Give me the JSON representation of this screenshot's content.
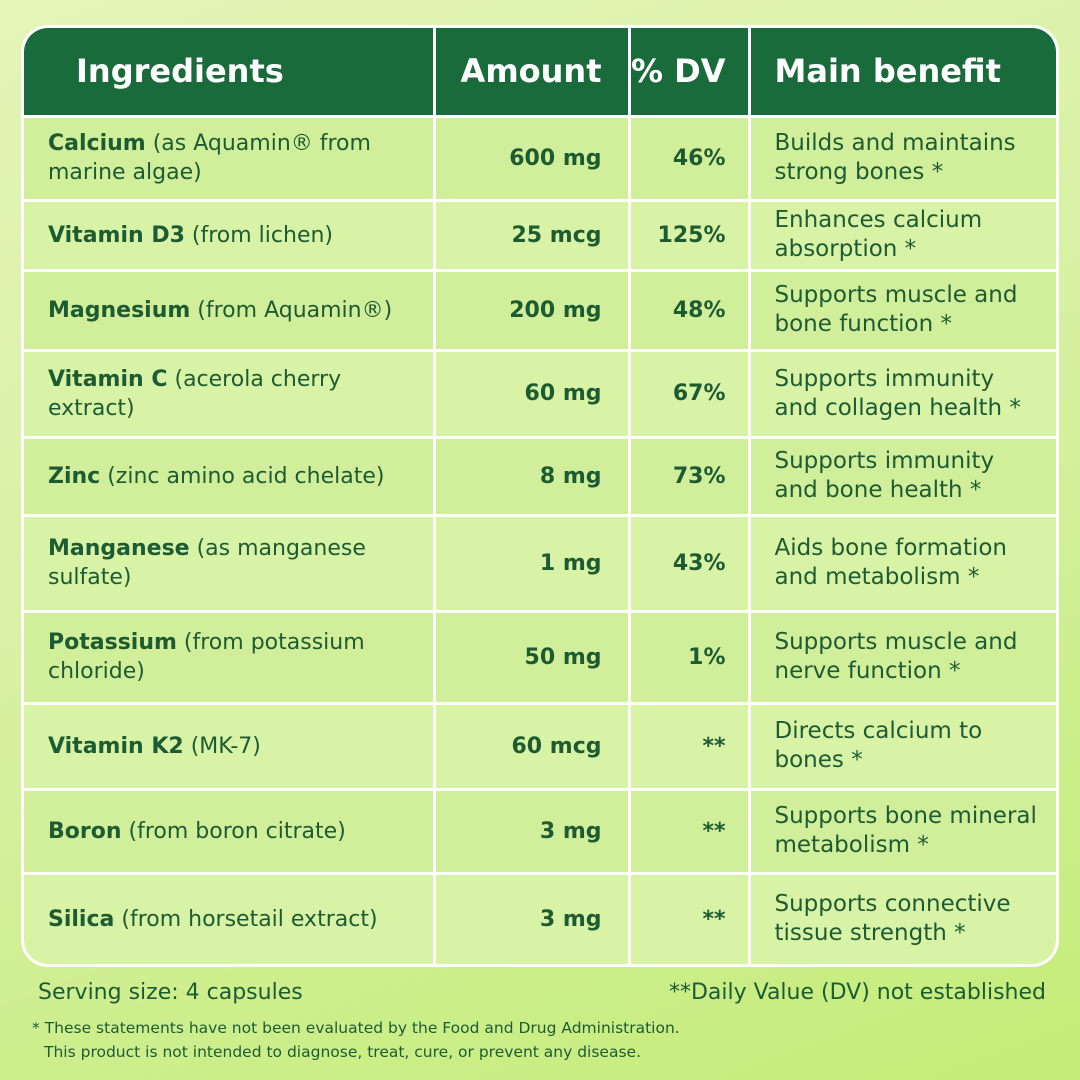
{
  "header": {
    "columns": [
      "Ingredients",
      "Amount",
      "% DV",
      "Main benefit"
    ]
  },
  "table": {
    "rows": [
      {
        "name": "Calcium",
        "detail": "(as Aquamin® from marine algae)",
        "amount": "600 mg",
        "dv": "46%",
        "benefit": "Builds and maintains strong bones *"
      },
      {
        "name": "Vitamin D3",
        "detail": "(from lichen)",
        "amount": "25 mcg",
        "dv": "125%",
        "benefit": "Enhances calcium absorption *"
      },
      {
        "name": "Magnesium",
        "detail": "(from Aquamin®)",
        "amount": "200 mg",
        "dv": "48%",
        "benefit": "Supports muscle and bone function *"
      },
      {
        "name": "Vitamin C",
        "detail": "(acerola cherry extract)",
        "amount": "60 mg",
        "dv": "67%",
        "benefit": "Supports immunity and collagen health *"
      },
      {
        "name": "Zinc",
        "detail": "(zinc amino acid chelate)",
        "amount": "8 mg",
        "dv": "73%",
        "benefit": "Supports immunity and bone health *"
      },
      {
        "name": "Manganese",
        "detail": "(as manganese sulfate)",
        "amount": "1 mg",
        "dv": "43%",
        "benefit": "Aids bone formation and metabolism *"
      },
      {
        "name": "Potassium",
        "detail": "(from potassium chloride)",
        "amount": "50 mg",
        "dv": "1%",
        "benefit": "Supports muscle and nerve function *"
      },
      {
        "name": "Vitamin K2",
        "detail": "(MK-7)",
        "amount": "60 mcg",
        "dv": "**",
        "benefit": "Directs calcium to bones *"
      },
      {
        "name": "Boron",
        "detail": "(from boron citrate)",
        "amount": "3 mg",
        "dv": "**",
        "benefit": "Supports bone mineral metabolism *"
      },
      {
        "name": "Silica",
        "detail": "(from horsetail extract)",
        "amount": "3 mg",
        "dv": "**",
        "benefit": "Supports connective tissue strength *"
      }
    ]
  },
  "footer": {
    "serving": "Serving size: 4 capsules",
    "dv_note": "**Daily Value (DV) not established",
    "disclaimer": [
      "* These statements have not been evaluated by the Food and Drug Administration.",
      "This product is not intended to diagnose, treat, cure, or prevent any disease."
    ]
  }
}
